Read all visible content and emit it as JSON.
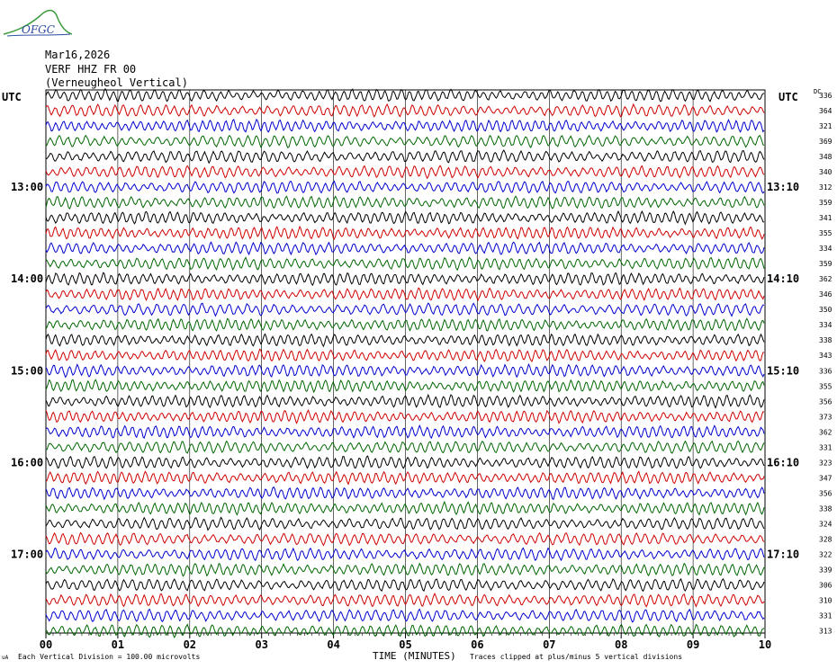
{
  "logo": {
    "text": "OFGC"
  },
  "header": {
    "date": "Mar16,2026",
    "station": "VERF HHZ FR 00",
    "location": "(Verneugheol Vertical)"
  },
  "left_axis_label": "UTC",
  "right_axis_label": "UTC",
  "dc_label": "DC",
  "footer": {
    "corner_mark": "uA",
    "scale_note": "Each Vertical Division = 100.00 microvolts",
    "clip_note": "Traces clipped at plus/minus 5 vertical divisions"
  },
  "chart_data": {
    "type": "line",
    "xlabel": "TIME (MINUTES)",
    "xlim": [
      0,
      10
    ],
    "x_ticks": [
      "00",
      "01",
      "02",
      "03",
      "04",
      "05",
      "06",
      "07",
      "08",
      "09",
      "10"
    ],
    "left_time_labels": [
      {
        "row": 6,
        "text": "13:00"
      },
      {
        "row": 12,
        "text": "14:00"
      },
      {
        "row": 18,
        "text": "15:00"
      },
      {
        "row": 24,
        "text": "16:00"
      },
      {
        "row": 30,
        "text": "17:00"
      }
    ],
    "right_time_labels": [
      {
        "row": 6,
        "text": "13:10"
      },
      {
        "row": 12,
        "text": "14:10"
      },
      {
        "row": 18,
        "text": "15:10"
      },
      {
        "row": 24,
        "text": "16:10"
      },
      {
        "row": 30,
        "text": "17:10"
      }
    ],
    "trace_colors": [
      "#000000",
      "#d00000",
      "#0000d0",
      "#006600"
    ],
    "dc_offsets": [
      336,
      364,
      321,
      369,
      348,
      340,
      312,
      359,
      341,
      355,
      334,
      359,
      362,
      346,
      350,
      334,
      338,
      343,
      336,
      355,
      356,
      373,
      362,
      331,
      323,
      347,
      356,
      338,
      324,
      328,
      322,
      339,
      306,
      310,
      331,
      313
    ],
    "trace_count": 36
  }
}
